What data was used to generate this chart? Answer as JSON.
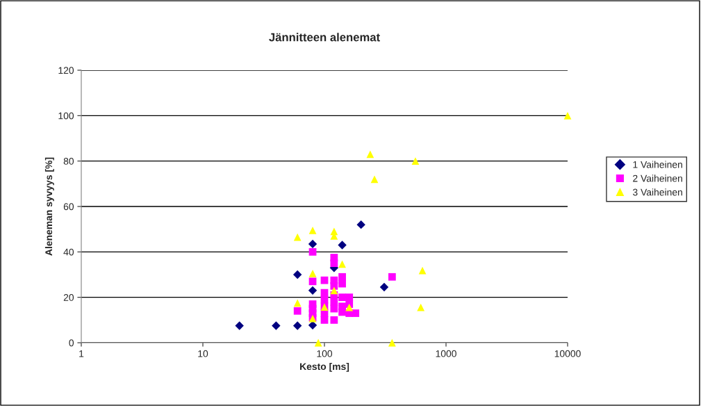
{
  "chart_data": {
    "type": "scatter",
    "title": "Jännitteen alenemat",
    "xlabel": "Kesto [ms]",
    "ylabel": "Aleneman syvyys [%]",
    "log": "x",
    "xlim": [
      1,
      10000
    ],
    "xticks": [
      1,
      10,
      100,
      1000,
      10000
    ],
    "ylim": [
      0,
      120
    ],
    "yticks": [
      0,
      20,
      40,
      60,
      80,
      100,
      120
    ],
    "grid": "y",
    "legend": "right",
    "series": [
      {
        "name": "1 Vaiheinen",
        "color": "#000080",
        "marker": "diamond",
        "x": [
          20,
          40,
          60,
          60,
          80,
          80,
          80,
          120,
          140,
          200,
          310
        ],
        "values": [
          7.5,
          7.5,
          7.5,
          30,
          7.7,
          23,
          43.5,
          33,
          43,
          52,
          24.5
        ]
      },
      {
        "name": "2 Vaiheinen",
        "color": "#ff00ff",
        "marker": "square",
        "x": [
          80,
          80,
          80,
          80,
          80,
          80,
          60,
          100,
          100,
          100,
          100,
          100,
          100,
          120,
          120,
          120,
          120,
          120,
          120,
          120,
          120,
          140,
          140,
          140,
          140,
          140,
          160,
          160,
          160,
          180,
          360
        ],
        "values": [
          40,
          27,
          17,
          15,
          13,
          11,
          14,
          27.5,
          22,
          19,
          16,
          13,
          10,
          37.5,
          35,
          27.5,
          25,
          21,
          18,
          15,
          10,
          29,
          26,
          20,
          16,
          13.5,
          20,
          17,
          13,
          13,
          29
        ]
      },
      {
        "name": "3 Vaiheinen",
        "color": "#ffff00",
        "marker": "triangle",
        "x": [
          60,
          80,
          120,
          120,
          140,
          80,
          120,
          60,
          100,
          160,
          80,
          89,
          360,
          640,
          620,
          238,
          560,
          258,
          10000
        ],
        "values": [
          46.5,
          49.5,
          49,
          47,
          34.6,
          30.5,
          23,
          17.5,
          15.7,
          15.6,
          10.7,
          0,
          0,
          31.8,
          15.6,
          83,
          80,
          72,
          100
        ]
      }
    ]
  }
}
